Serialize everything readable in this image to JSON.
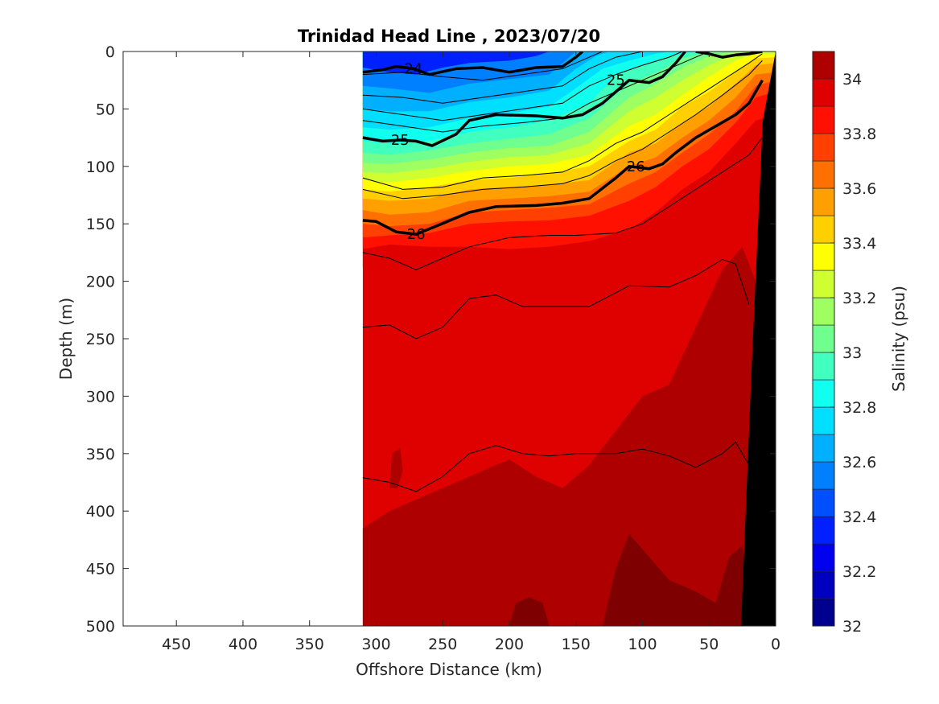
{
  "chart_data": {
    "type": "heatmap",
    "title": "Trinidad Head Line , 2023/07/20",
    "xlabel": "Offshore Distance (km)",
    "ylabel": "Depth (m)",
    "colorbar_label": "Salinity (psu)",
    "xlim": [
      490,
      0
    ],
    "ylim": [
      0,
      500
    ],
    "x_ticks": [
      450,
      400,
      350,
      300,
      250,
      200,
      150,
      100,
      50,
      0
    ],
    "y_ticks": [
      0,
      50,
      100,
      150,
      200,
      250,
      300,
      350,
      400,
      450,
      500
    ],
    "colorbar_ticks": [
      "32",
      "32.2",
      "32.4",
      "32.6",
      "32.8",
      "33",
      "33.2",
      "33.4",
      "33.6",
      "33.8",
      "34"
    ],
    "colorbar_tick_values": [
      32,
      32.2,
      32.4,
      32.6,
      32.8,
      33,
      33.2,
      33.4,
      33.6,
      33.8,
      34
    ],
    "colorbar_range": [
      32,
      34.1
    ],
    "data_extent_km": [
      310,
      0
    ],
    "contour_labels": [
      {
        "label": "24",
        "x": 272,
        "y": 15
      },
      {
        "label": "25",
        "x": 120,
        "y": 25
      },
      {
        "label": "25",
        "x": 282,
        "y": 77
      },
      {
        "label": "26",
        "x": 105,
        "y": 100
      },
      {
        "label": "26",
        "x": 270,
        "y": 159
      }
    ],
    "colors": {
      "bottom_topography": "#000000",
      "colormap": [
        "#00008f",
        "#0000bf",
        "#0000ef",
        "#0020ff",
        "#0050ff",
        "#0080ff",
        "#00b0ff",
        "#00dfff",
        "#10ffef",
        "#40ffbf",
        "#70ff8f",
        "#9fff60",
        "#cfff30",
        "#ffff00",
        "#ffcf00",
        "#ff9f00",
        "#ff7000",
        "#ff4000",
        "#ff1000",
        "#df0000",
        "#af0000"
      ]
    }
  }
}
